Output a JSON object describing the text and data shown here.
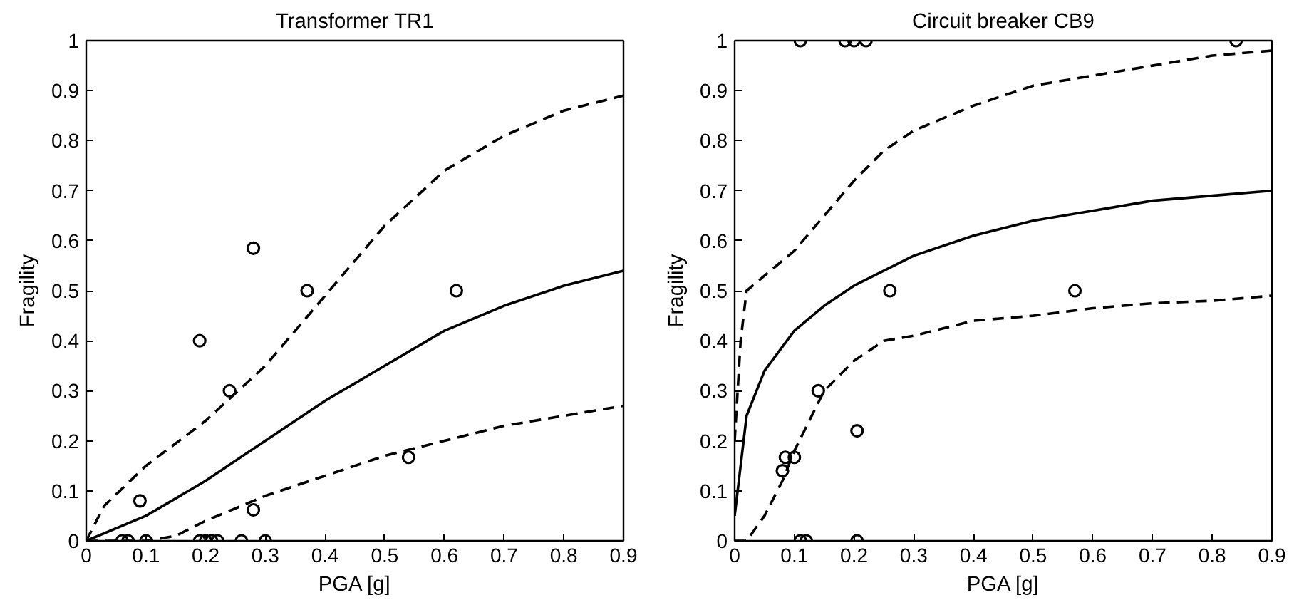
{
  "chart_data": [
    {
      "type": "scatter",
      "title": "Transformer TR1",
      "xlabel": "PGA [g]",
      "ylabel": "Fragility",
      "xlim": [
        0,
        0.9
      ],
      "ylim": [
        0,
        1
      ],
      "xticks": [
        0,
        0.1,
        0.2,
        0.3,
        0.4,
        0.5,
        0.6,
        0.7,
        0.8,
        0.9
      ],
      "yticks": [
        0,
        0.1,
        0.2,
        0.3,
        0.4,
        0.5,
        0.6,
        0.7,
        0.8,
        0.9,
        1
      ],
      "grid": false,
      "series": [
        {
          "marker": "circle",
          "color": "#000000",
          "x": [
            0.06,
            0.07,
            0.1,
            0.19,
            0.2,
            0.21,
            0.22,
            0.26,
            0.3,
            0.09,
            0.19,
            0.24,
            0.28,
            0.28,
            0.37,
            0.54,
            0.62
          ],
          "values": [
            0,
            0,
            0,
            0,
            0,
            0,
            0,
            0,
            0,
            0.08,
            0.4,
            0.3,
            0.585,
            0.062,
            0.5,
            0.167,
            0.5
          ]
        },
        {
          "type": "line",
          "line_style": "solid",
          "color": "#000000",
          "x": [
            0,
            0.1,
            0.2,
            0.3,
            0.4,
            0.5,
            0.6,
            0.7,
            0.8,
            0.9
          ],
          "values": [
            0,
            0.05,
            0.12,
            0.2,
            0.28,
            0.35,
            0.42,
            0.47,
            0.51,
            0.54
          ]
        },
        {
          "type": "line",
          "line_style": "dashed",
          "color": "#000000",
          "x": [
            0,
            0.03,
            0.1,
            0.2,
            0.3,
            0.4,
            0.5,
            0.6,
            0.7,
            0.8,
            0.9
          ],
          "values": [
            0,
            0.07,
            0.15,
            0.24,
            0.35,
            0.49,
            0.63,
            0.74,
            0.81,
            0.86,
            0.89
          ]
        },
        {
          "type": "line",
          "line_style": "dashed",
          "color": "#000000",
          "x": [
            0,
            0.1,
            0.15,
            0.2,
            0.3,
            0.4,
            0.5,
            0.6,
            0.7,
            0.8,
            0.9
          ],
          "values": [
            0,
            0,
            0.01,
            0.04,
            0.09,
            0.13,
            0.17,
            0.2,
            0.23,
            0.25,
            0.27
          ]
        }
      ]
    },
    {
      "type": "scatter",
      "title": "Circuit breaker CB9",
      "xlabel": "PGA [g]",
      "ylabel": "Fragility",
      "xlim": [
        0,
        0.9
      ],
      "ylim": [
        0,
        1
      ],
      "xticks": [
        0,
        0.1,
        0.2,
        0.3,
        0.4,
        0.5,
        0.6,
        0.7,
        0.8,
        0.9
      ],
      "yticks": [
        0,
        0.1,
        0.2,
        0.3,
        0.4,
        0.5,
        0.6,
        0.7,
        0.8,
        0.9,
        1
      ],
      "grid": false,
      "series": [
        {
          "marker": "circle",
          "color": "#000000",
          "x": [
            0.11,
            0.185,
            0.2,
            0.22,
            0.84,
            0.11,
            0.12,
            0.205,
            0.08,
            0.085,
            0.1,
            0.14,
            0.205,
            0.26,
            0.57
          ],
          "values": [
            1,
            1,
            1,
            1,
            1,
            0,
            0,
            0,
            0.14,
            0.167,
            0.167,
            0.3,
            0.22,
            0.5,
            0.5
          ]
        },
        {
          "type": "line",
          "line_style": "solid",
          "color": "#000000",
          "x": [
            0,
            0.02,
            0.05,
            0.1,
            0.15,
            0.2,
            0.3,
            0.4,
            0.5,
            0.6,
            0.7,
            0.8,
            0.9
          ],
          "values": [
            0.05,
            0.25,
            0.34,
            0.42,
            0.47,
            0.51,
            0.57,
            0.61,
            0.64,
            0.66,
            0.68,
            0.69,
            0.7
          ]
        },
        {
          "type": "line",
          "line_style": "dashed",
          "color": "#000000",
          "x": [
            0,
            0.01,
            0.02,
            0.05,
            0.1,
            0.15,
            0.2,
            0.25,
            0.3,
            0.4,
            0.5,
            0.6,
            0.7,
            0.8,
            0.9
          ],
          "values": [
            0.2,
            0.4,
            0.5,
            0.53,
            0.58,
            0.65,
            0.72,
            0.78,
            0.82,
            0.87,
            0.91,
            0.93,
            0.95,
            0.97,
            0.98
          ]
        },
        {
          "type": "line",
          "line_style": "dashed",
          "color": "#000000",
          "x": [
            0,
            0.02,
            0.05,
            0.08,
            0.1,
            0.15,
            0.2,
            0.25,
            0.3,
            0.4,
            0.5,
            0.6,
            0.7,
            0.8,
            0.9
          ],
          "values": [
            0,
            0,
            0.05,
            0.12,
            0.18,
            0.3,
            0.36,
            0.4,
            0.41,
            0.44,
            0.45,
            0.465,
            0.475,
            0.48,
            0.49
          ]
        }
      ]
    }
  ]
}
